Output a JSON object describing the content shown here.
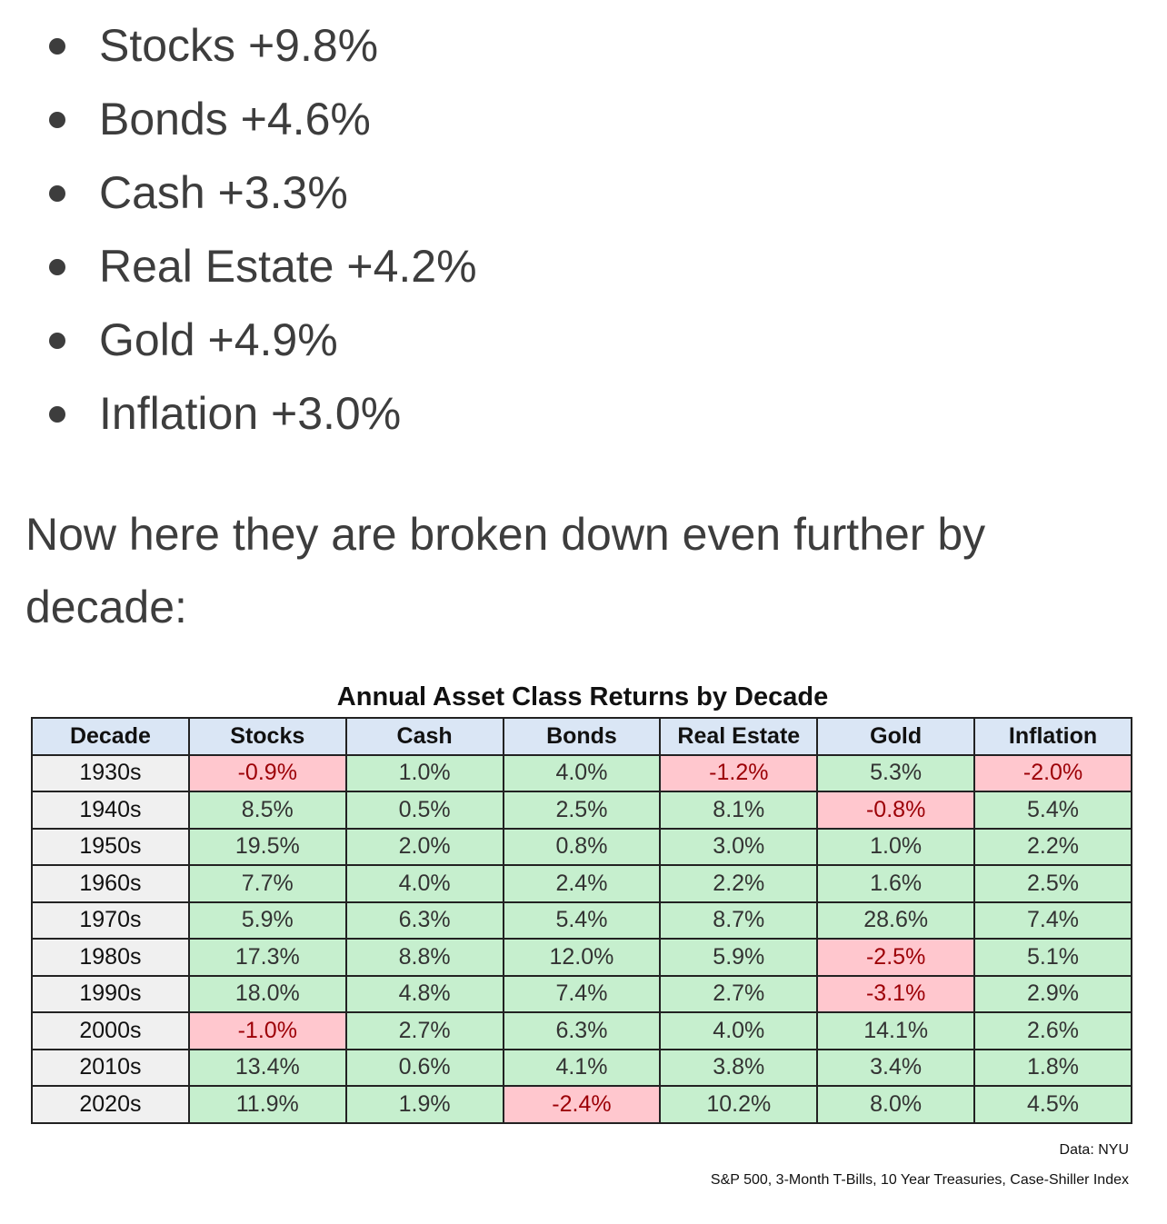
{
  "bullets": [
    {
      "label": "Stocks +9.8%"
    },
    {
      "label": "Bonds +4.6%"
    },
    {
      "label": "Cash +3.3%"
    },
    {
      "label": "Real Estate +4.2%"
    },
    {
      "label": "Gold +4.9%"
    },
    {
      "label": "Inflation +3.0%"
    }
  ],
  "paragraph": "Now here they are broken down even further by decade:",
  "table": {
    "title": "Annual Asset Class Returns by Decade",
    "headers": [
      "Decade",
      "Stocks",
      "Cash",
      "Bonds",
      "Real Estate",
      "Gold",
      "Inflation"
    ],
    "rows": [
      [
        "1930s",
        "-0.9%",
        "1.0%",
        "4.0%",
        "-1.2%",
        "5.3%",
        "-2.0%"
      ],
      [
        "1940s",
        "8.5%",
        "0.5%",
        "2.5%",
        "8.1%",
        "-0.8%",
        "5.4%"
      ],
      [
        "1950s",
        "19.5%",
        "2.0%",
        "0.8%",
        "3.0%",
        "1.0%",
        "2.2%"
      ],
      [
        "1960s",
        "7.7%",
        "4.0%",
        "2.4%",
        "2.2%",
        "1.6%",
        "2.5%"
      ],
      [
        "1970s",
        "5.9%",
        "6.3%",
        "5.4%",
        "8.7%",
        "28.6%",
        "7.4%"
      ],
      [
        "1980s",
        "17.3%",
        "8.8%",
        "12.0%",
        "5.9%",
        "-2.5%",
        "5.1%"
      ],
      [
        "1990s",
        "18.0%",
        "4.8%",
        "7.4%",
        "2.7%",
        "-3.1%",
        "2.9%"
      ],
      [
        "2000s",
        "-1.0%",
        "2.7%",
        "6.3%",
        "4.0%",
        "14.1%",
        "2.6%"
      ],
      [
        "2010s",
        "13.4%",
        "0.6%",
        "4.1%",
        "3.8%",
        "3.4%",
        "1.8%"
      ],
      [
        "2020s",
        "11.9%",
        "1.9%",
        "-2.4%",
        "10.2%",
        "8.0%",
        "4.5%"
      ]
    ],
    "source": "Data: NYU",
    "note": "S&P 500, 3-Month T-Bills, 10 Year Treasuries, Case-Shiller Index"
  },
  "colors": {
    "text": "#3d3d3d",
    "header_bg": "#dae6f5",
    "positive_bg": "#c6efce",
    "negative_bg": "#ffc7ce",
    "negative_text": "#9c0006"
  }
}
